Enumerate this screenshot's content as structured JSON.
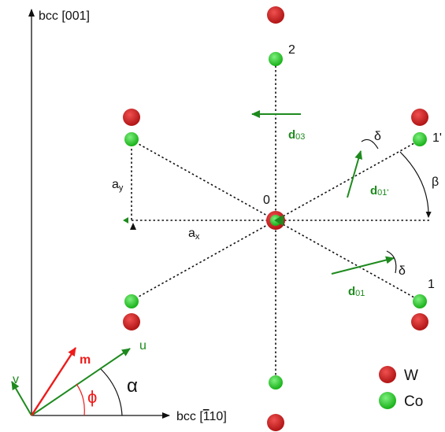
{
  "axes": {
    "vertical_label": "bcc [001]",
    "horizontal_label": "bcc [",
    "horizontal_label_overbar": "1",
    "horizontal_label_tail": "10]"
  },
  "angles": {
    "alpha": "α",
    "beta": "β",
    "delta": "δ",
    "phi": "ϕ"
  },
  "vectors": {
    "m": "m",
    "u": "u",
    "v": "v"
  },
  "lattice": {
    "ax": "a",
    "ax_sub": "x",
    "ay": "a",
    "ay_sub": "y"
  },
  "sites": {
    "center": "0",
    "top": "2",
    "upper_right": "1'",
    "lower_right": "1"
  },
  "moments": {
    "d03": "d",
    "d03_sub": "03",
    "d01p": "d",
    "d01p_sub": "01'",
    "d01": "d",
    "d01_sub": "01"
  },
  "legend": {
    "w_label": "W",
    "co_label": "Co"
  },
  "colors": {
    "w_atom": "#cc1e1e",
    "co_atom": "#22c422",
    "green_arrow": "#1e8a1e",
    "red_arrow": "#ee1b1b"
  }
}
